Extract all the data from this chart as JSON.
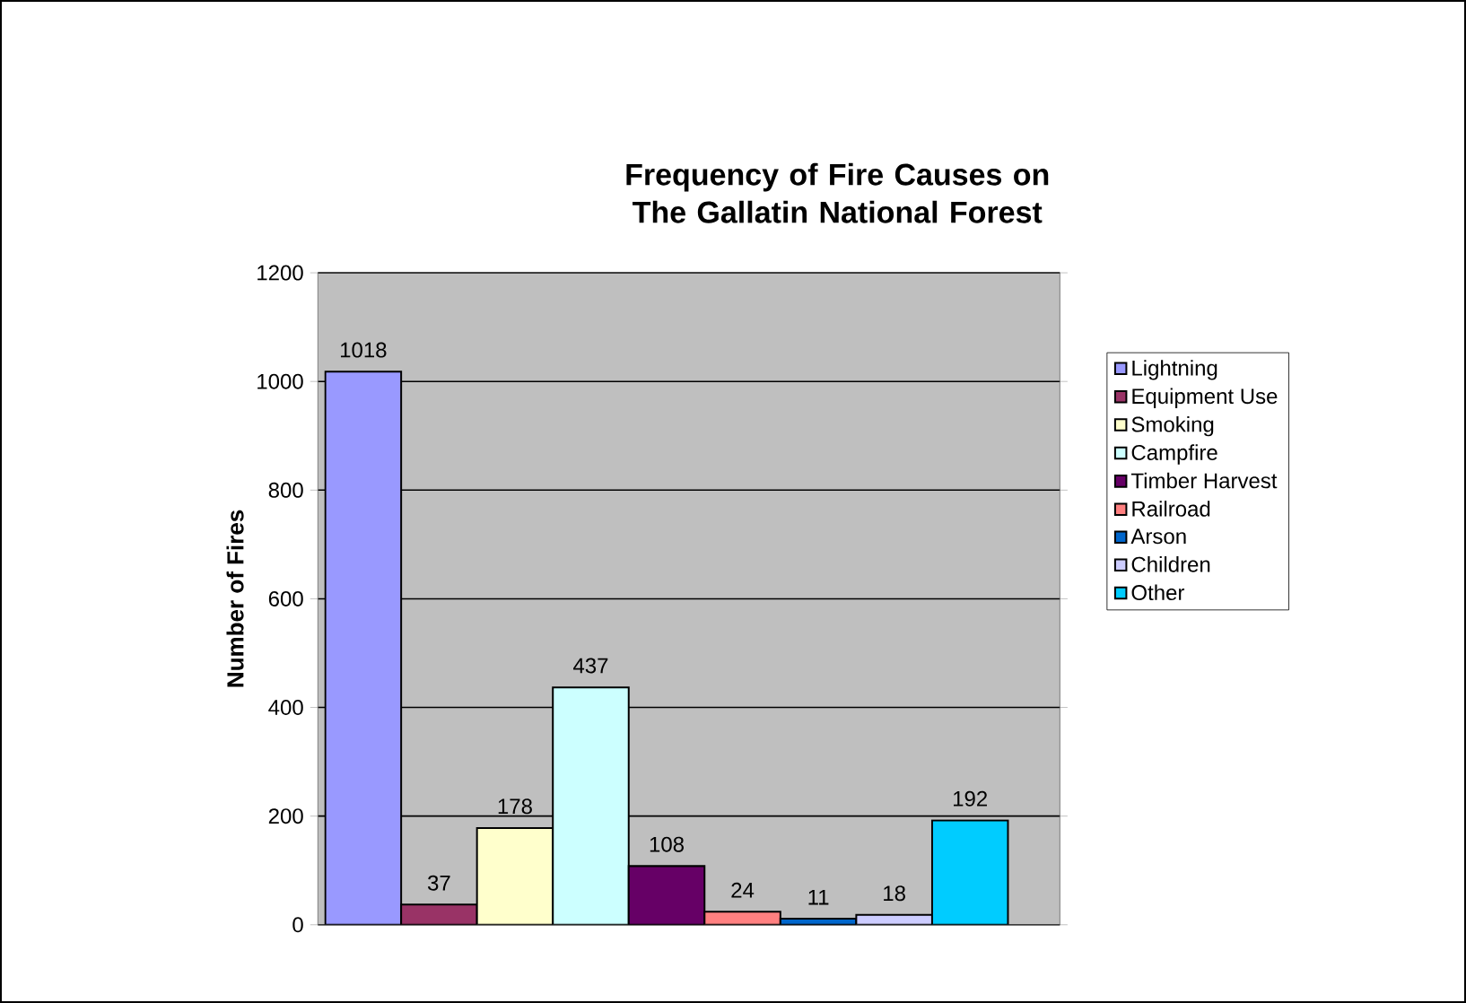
{
  "chart_data": {
    "type": "bar",
    "title": "Frequency of Fire Causes on The Gallatin National Forest",
    "ylabel": "Number of Fires",
    "categories": [
      null
    ],
    "series": [
      {
        "name": "Lightning",
        "color": "#9999ff",
        "values": [
          1018
        ]
      },
      {
        "name": "Equipment Use",
        "color": "#993366",
        "values": [
          37
        ]
      },
      {
        "name": "Smoking",
        "color": "#ffffcc",
        "values": [
          178
        ]
      },
      {
        "name": "Campfire",
        "color": "#ccffff",
        "values": [
          437
        ]
      },
      {
        "name": "Timber Harvest",
        "color": "#660066",
        "values": [
          108
        ]
      },
      {
        "name": "Railroad",
        "color": "#ff8080",
        "values": [
          24
        ]
      },
      {
        "name": "Arson",
        "color": "#0066cc",
        "values": [
          11
        ]
      },
      {
        "name": "Children",
        "color": "#ccccff",
        "values": [
          18
        ]
      },
      {
        "name": "Other",
        "color": "#00ccff",
        "values": [
          192
        ]
      }
    ],
    "ylim": [
      0,
      1200
    ],
    "yticks": [
      0,
      200,
      400,
      600,
      800,
      1000,
      1200
    ],
    "grid": "y",
    "legend": "right",
    "data_labels": true,
    "tick_labels": "y"
  }
}
